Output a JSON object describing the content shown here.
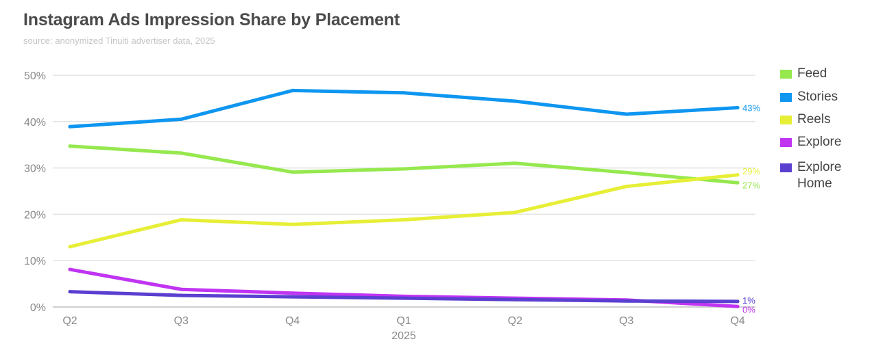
{
  "header": {
    "title": "Instagram Ads Impression Share by Placement",
    "subtitle": "source: anonymized Tinuiti advertiser data, 2025"
  },
  "chart_data": {
    "type": "line",
    "title": "Instagram Ads Impression Share by Placement",
    "subtitle": "source: anonymized Tinuiti advertiser data, 2025",
    "x": [
      "Q2",
      "Q3",
      "Q4",
      "Q1",
      "Q2",
      "Q3",
      "Q4"
    ],
    "x_year_label": "2025",
    "ylim": [
      0,
      50
    ],
    "yticks": [
      0,
      10,
      20,
      30,
      40,
      50
    ],
    "ytick_labels": [
      "0%",
      "10%",
      "20%",
      "30%",
      "40%",
      "50%"
    ],
    "grid": true,
    "legend_position": "right",
    "series": [
      {
        "name": "Feed",
        "color": "#95e84e",
        "values": [
          34.7,
          33.2,
          29.1,
          29.8,
          31.0,
          29.0,
          26.8
        ],
        "end_label": "27%"
      },
      {
        "name": "Stories",
        "color": "#0e96f0",
        "values": [
          38.9,
          40.5,
          46.7,
          46.2,
          44.4,
          41.6,
          43.0
        ],
        "end_label": "43%"
      },
      {
        "name": "Reels",
        "color": "#e6ef36",
        "values": [
          13.0,
          18.8,
          17.8,
          18.8,
          20.4,
          26.0,
          28.5
        ],
        "end_label": "29%"
      },
      {
        "name": "Explore",
        "color": "#c034f2",
        "values": [
          8.1,
          3.8,
          3.0,
          2.3,
          1.9,
          1.5,
          0.1
        ],
        "end_label": "0%"
      },
      {
        "name": "Explore Home",
        "color": "#5a3fd0",
        "values": [
          3.3,
          2.5,
          2.2,
          1.9,
          1.6,
          1.3,
          1.2
        ],
        "end_label": "1%"
      }
    ]
  }
}
